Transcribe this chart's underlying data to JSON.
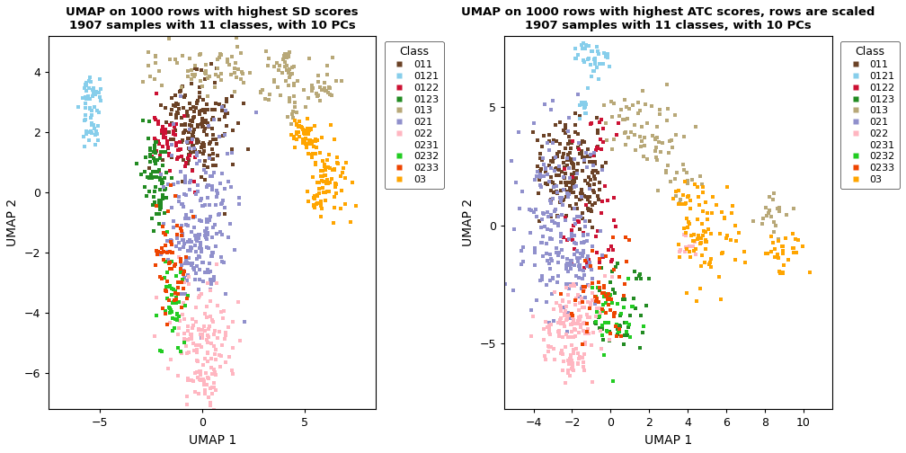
{
  "plot1": {
    "title": "UMAP on 1000 rows with highest SD scores\n1907 samples with 11 classes, with 10 PCs",
    "xlabel": "UMAP 1",
    "ylabel": "UMAP 2",
    "xlim": [
      -7.5,
      8.5
    ],
    "ylim": [
      -7.2,
      5.2
    ],
    "xticks": [
      -5,
      0,
      5
    ],
    "yticks": [
      -6,
      -4,
      -2,
      0,
      2,
      4
    ]
  },
  "plot2": {
    "title": "UMAP on 1000 rows with highest ATC scores, rows are scaled\n1907 samples with 11 classes, with 10 PCs",
    "xlabel": "UMAP 1",
    "ylabel": "UMAP 2",
    "xlim": [
      -5.5,
      11.5
    ],
    "ylim": [
      -7.8,
      8.0
    ],
    "xticks": [
      -4,
      -2,
      0,
      2,
      4,
      6,
      8,
      10
    ],
    "yticks": [
      -5,
      0,
      5
    ]
  },
  "classes": [
    "011",
    "0121",
    "0122",
    "0123",
    "013",
    "021",
    "022",
    "0231",
    "0232",
    "0233",
    "03"
  ],
  "colors": {
    "011": "#6B4226",
    "0121": "#87CEEB",
    "0122": "#CC1133",
    "0123": "#228B22",
    "013": "#B8A878",
    "021": "#9090CC",
    "022": "#FFB6C1",
    "0231": "#FFFFFF",
    "0232": "#22CC22",
    "0233": "#EE4400",
    "03": "#FFA500"
  },
  "marker": "s",
  "point_size": 7,
  "bg_color": "#FFFFFF",
  "panel_bg": "#FFFFFF"
}
